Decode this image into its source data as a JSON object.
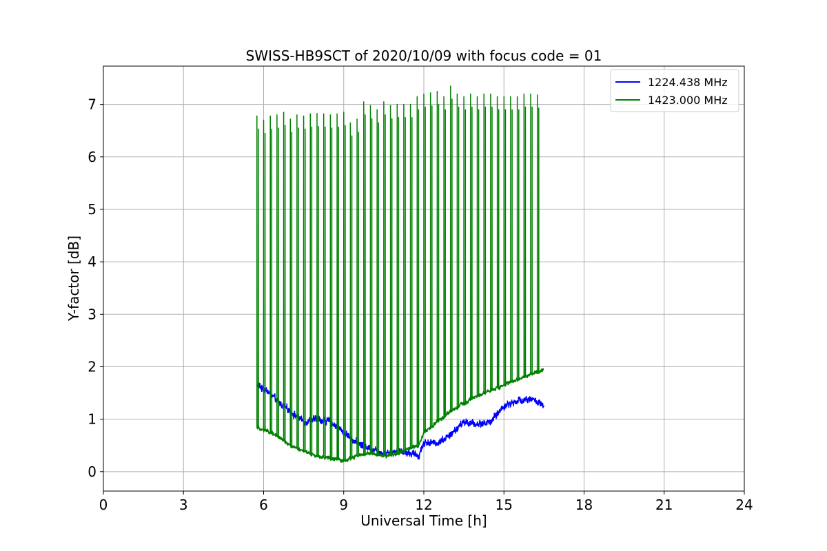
{
  "chart_data": {
    "type": "line",
    "title": "SWISS-HB9SCT of 2020/10/09 with focus code = 01",
    "xlabel": "Universal Time [h]",
    "ylabel": "Y-factor [dB]",
    "xlim": [
      0,
      24
    ],
    "ylim": [
      -0.37,
      7.73
    ],
    "xticks": [
      "0",
      "3",
      "6",
      "9",
      "12",
      "15",
      "18",
      "21",
      "24"
    ],
    "yticks": [
      "0",
      "1",
      "2",
      "3",
      "4",
      "5",
      "6",
      "7"
    ],
    "grid": true,
    "legend_position": "top-right",
    "series": [
      {
        "name": "1224.438 MHz",
        "color": "#0000ff",
        "noise": 0.09,
        "t_start": 5.75,
        "t_end": 16.5,
        "baseline": [
          [
            5.75,
            1.65
          ],
          [
            6.1,
            1.55
          ],
          [
            6.5,
            1.35
          ],
          [
            7.0,
            1.15
          ],
          [
            7.5,
            0.95
          ],
          [
            8.0,
            1.0
          ],
          [
            8.5,
            0.95
          ],
          [
            9.0,
            0.75
          ],
          [
            9.5,
            0.55
          ],
          [
            10.0,
            0.45
          ],
          [
            10.5,
            0.35
          ],
          [
            11.0,
            0.4
          ],
          [
            11.5,
            0.35
          ],
          [
            11.8,
            0.3
          ],
          [
            12.0,
            0.55
          ],
          [
            12.5,
            0.55
          ],
          [
            13.0,
            0.7
          ],
          [
            13.5,
            0.95
          ],
          [
            14.0,
            0.9
          ],
          [
            14.5,
            0.95
          ],
          [
            15.0,
            1.25
          ],
          [
            15.5,
            1.35
          ],
          [
            16.0,
            1.4
          ],
          [
            16.5,
            1.25
          ]
        ]
      },
      {
        "name": "1423.000 MHz",
        "color": "#008000",
        "noise": 0.05,
        "t_start": 5.75,
        "t_end": 16.5,
        "baseline": [
          [
            5.75,
            0.85
          ],
          [
            6.0,
            0.8
          ],
          [
            6.5,
            0.7
          ],
          [
            7.0,
            0.5
          ],
          [
            7.5,
            0.4
          ],
          [
            8.0,
            0.3
          ],
          [
            8.5,
            0.25
          ],
          [
            9.0,
            0.2
          ],
          [
            9.5,
            0.3
          ],
          [
            10.0,
            0.35
          ],
          [
            10.5,
            0.3
          ],
          [
            11.0,
            0.35
          ],
          [
            11.5,
            0.45
          ],
          [
            11.8,
            0.5
          ],
          [
            12.0,
            0.75
          ],
          [
            12.5,
            0.95
          ],
          [
            13.0,
            1.15
          ],
          [
            13.5,
            1.3
          ],
          [
            14.0,
            1.45
          ],
          [
            14.5,
            1.55
          ],
          [
            15.0,
            1.65
          ],
          [
            15.5,
            1.75
          ],
          [
            16.0,
            1.85
          ],
          [
            16.5,
            1.95
          ]
        ],
        "spike_times": [
          5.75,
          6.0,
          6.25,
          6.5,
          6.75,
          7.0,
          7.25,
          7.5,
          7.75,
          8.0,
          8.25,
          8.5,
          8.75,
          9.0,
          9.25,
          9.5,
          9.75,
          10.0,
          10.25,
          10.5,
          10.75,
          11.0,
          11.25,
          11.5,
          11.75,
          12.0,
          12.25,
          12.5,
          12.75,
          13.0,
          13.25,
          13.5,
          13.75,
          14.0,
          14.25,
          14.5,
          14.75,
          15.0,
          15.25,
          15.5,
          15.75,
          16.0,
          16.25
        ],
        "spike_peaks": [
          6.78,
          6.7,
          6.78,
          6.8,
          6.85,
          6.72,
          6.8,
          6.78,
          6.82,
          6.83,
          6.82,
          6.8,
          6.82,
          6.85,
          6.65,
          6.72,
          7.05,
          6.98,
          6.9,
          7.05,
          6.98,
          7.0,
          7.0,
          7.0,
          7.15,
          7.2,
          7.22,
          7.25,
          7.15,
          7.35,
          7.2,
          7.15,
          7.2,
          7.15,
          7.2,
          7.2,
          7.15,
          7.15,
          7.15,
          7.15,
          7.2,
          7.2,
          7.18
        ],
        "spike_duration": 0.055
      }
    ]
  }
}
